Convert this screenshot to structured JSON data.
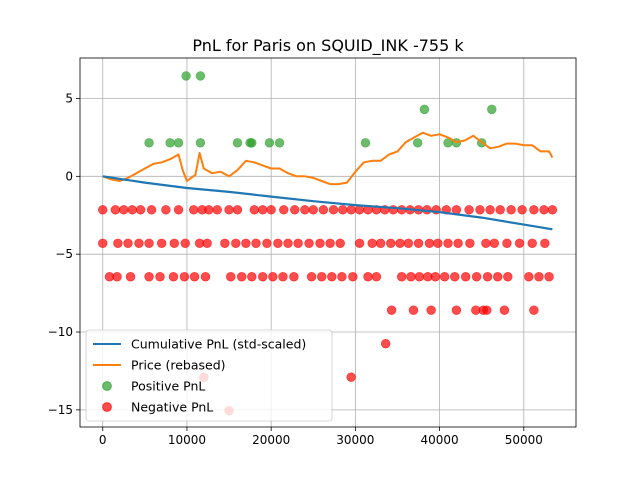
{
  "chart_data": {
    "type": "scatter",
    "title": "PnL for Paris on SQUID_INK -755 k",
    "xlabel": "",
    "ylabel": "",
    "xlim": [
      -2700,
      56200
    ],
    "ylim": [
      -16.1,
      7.6
    ],
    "x_ticks": [
      0,
      10000,
      20000,
      30000,
      40000,
      50000
    ],
    "y_ticks": [
      5,
      0,
      -5,
      -10,
      -15
    ],
    "grid": true,
    "legend_position": "lower-left",
    "legend": [
      {
        "label": "Cumulative PnL (std-scaled)",
        "kind": "line",
        "color": "#1f77b4"
      },
      {
        "label": "Price (rebased)",
        "kind": "line",
        "color": "#ff7f0e"
      },
      {
        "label": "Positive PnL",
        "kind": "marker",
        "color": "#2ca02c"
      },
      {
        "label": "Negative PnL",
        "kind": "marker",
        "color": "#ff0000"
      }
    ],
    "series": [
      {
        "name": "Cumulative PnL (std-scaled)",
        "type": "line",
        "color": "#1f77b4",
        "points": [
          [
            0,
            0
          ],
          [
            5000,
            -0.4
          ],
          [
            10000,
            -0.75
          ],
          [
            15000,
            -1.0
          ],
          [
            20000,
            -1.3
          ],
          [
            25000,
            -1.6
          ],
          [
            30000,
            -1.85
          ],
          [
            35000,
            -2.05
          ],
          [
            40000,
            -2.3
          ],
          [
            45000,
            -2.65
          ],
          [
            50000,
            -3.1
          ],
          [
            53400,
            -3.4
          ]
        ]
      },
      {
        "name": "Price (rebased)",
        "type": "line",
        "color": "#ff7f0e",
        "points": [
          [
            0,
            0
          ],
          [
            1000,
            -0.2
          ],
          [
            2000,
            -0.3
          ],
          [
            3000,
            -0.1
          ],
          [
            4000,
            0.2
          ],
          [
            5000,
            0.5
          ],
          [
            6000,
            0.8
          ],
          [
            7000,
            0.9
          ],
          [
            8000,
            1.1
          ],
          [
            9000,
            1.4
          ],
          [
            9500,
            0.4
          ],
          [
            10000,
            -0.3
          ],
          [
            11000,
            0.1
          ],
          [
            11500,
            1.5
          ],
          [
            12000,
            0.5
          ],
          [
            13000,
            0.2
          ],
          [
            14000,
            0.3
          ],
          [
            15000,
            0.0
          ],
          [
            16000,
            0.4
          ],
          [
            17000,
            1.0
          ],
          [
            18000,
            0.9
          ],
          [
            19000,
            0.7
          ],
          [
            20000,
            0.5
          ],
          [
            21000,
            0.5
          ],
          [
            22000,
            0.2
          ],
          [
            23000,
            0.0
          ],
          [
            24000,
            0.0
          ],
          [
            25000,
            -0.1
          ],
          [
            26000,
            -0.3
          ],
          [
            27000,
            -0.5
          ],
          [
            28000,
            -0.5
          ],
          [
            29000,
            -0.4
          ],
          [
            30000,
            0.3
          ],
          [
            31000,
            0.9
          ],
          [
            32000,
            1.0
          ],
          [
            33000,
            1.0
          ],
          [
            34000,
            1.4
          ],
          [
            35000,
            1.6
          ],
          [
            36000,
            2.2
          ],
          [
            37000,
            2.5
          ],
          [
            38000,
            2.8
          ],
          [
            39000,
            2.6
          ],
          [
            40000,
            2.7
          ],
          [
            41000,
            2.5
          ],
          [
            42000,
            2.2
          ],
          [
            43000,
            2.3
          ],
          [
            44000,
            2.6
          ],
          [
            45000,
            2.2
          ],
          [
            46000,
            1.8
          ],
          [
            47000,
            1.9
          ],
          [
            48000,
            2.1
          ],
          [
            49000,
            2.1
          ],
          [
            50000,
            2.0
          ],
          [
            51000,
            2.0
          ],
          [
            52000,
            1.6
          ],
          [
            53000,
            1.6
          ],
          [
            53400,
            1.2
          ]
        ]
      },
      {
        "name": "Positive PnL",
        "type": "scatter",
        "color": "#2ca02c",
        "points": [
          [
            5500,
            2.15
          ],
          [
            8000,
            2.15
          ],
          [
            9000,
            2.15
          ],
          [
            9900,
            6.45
          ],
          [
            11600,
            6.45
          ],
          [
            11600,
            2.15
          ],
          [
            16000,
            2.15
          ],
          [
            17500,
            2.15
          ],
          [
            17700,
            2.15
          ],
          [
            19800,
            2.15
          ],
          [
            21000,
            2.15
          ],
          [
            31200,
            2.15
          ],
          [
            37400,
            2.15
          ],
          [
            38200,
            4.3
          ],
          [
            41000,
            2.15
          ],
          [
            42000,
            2.15
          ],
          [
            45000,
            2.15
          ],
          [
            46200,
            4.3
          ]
        ]
      },
      {
        "name": "Negative PnL",
        "type": "scatter",
        "color": "#ff0000",
        "points": [
          [
            0,
            -2.15
          ],
          [
            1500,
            -2.15
          ],
          [
            2500,
            -2.15
          ],
          [
            3500,
            -2.15
          ],
          [
            4500,
            -2.15
          ],
          [
            5800,
            -2.15
          ],
          [
            7500,
            -2.15
          ],
          [
            9000,
            -2.15
          ],
          [
            10800,
            -2.15
          ],
          [
            11800,
            -2.15
          ],
          [
            12600,
            -2.15
          ],
          [
            13600,
            -2.15
          ],
          [
            15000,
            -2.15
          ],
          [
            16000,
            -2.15
          ],
          [
            18000,
            -2.15
          ],
          [
            19000,
            -2.15
          ],
          [
            20000,
            -2.15
          ],
          [
            21500,
            -2.15
          ],
          [
            22800,
            -2.15
          ],
          [
            24000,
            -2.15
          ],
          [
            25000,
            -2.15
          ],
          [
            26200,
            -2.15
          ],
          [
            27400,
            -2.15
          ],
          [
            28500,
            -2.15
          ],
          [
            29500,
            -2.15
          ],
          [
            30500,
            -2.15
          ],
          [
            31500,
            -2.15
          ],
          [
            32500,
            -2.15
          ],
          [
            33500,
            -2.15
          ],
          [
            34500,
            -2.15
          ],
          [
            35500,
            -2.15
          ],
          [
            36500,
            -2.15
          ],
          [
            37500,
            -2.15
          ],
          [
            38500,
            -2.15
          ],
          [
            39600,
            -2.15
          ],
          [
            40800,
            -2.15
          ],
          [
            42000,
            -2.15
          ],
          [
            43500,
            -2.15
          ],
          [
            44800,
            -2.15
          ],
          [
            46000,
            -2.15
          ],
          [
            47200,
            -2.15
          ],
          [
            48500,
            -2.15
          ],
          [
            49800,
            -2.15
          ],
          [
            51200,
            -2.15
          ],
          [
            52400,
            -2.15
          ],
          [
            53400,
            -2.15
          ],
          [
            0,
            -4.3
          ],
          [
            1800,
            -4.3
          ],
          [
            3000,
            -4.3
          ],
          [
            4300,
            -4.3
          ],
          [
            5500,
            -4.3
          ],
          [
            7000,
            -4.3
          ],
          [
            8500,
            -4.3
          ],
          [
            9800,
            -4.3
          ],
          [
            11500,
            -4.3
          ],
          [
            12400,
            -4.3
          ],
          [
            14500,
            -4.3
          ],
          [
            15800,
            -4.3
          ],
          [
            17000,
            -4.3
          ],
          [
            18200,
            -4.3
          ],
          [
            19500,
            -4.3
          ],
          [
            20800,
            -4.3
          ],
          [
            22000,
            -4.3
          ],
          [
            23200,
            -4.3
          ],
          [
            24500,
            -4.3
          ],
          [
            25800,
            -4.3
          ],
          [
            27000,
            -4.3
          ],
          [
            28200,
            -4.3
          ],
          [
            30500,
            -4.3
          ],
          [
            32000,
            -4.3
          ],
          [
            33000,
            -4.3
          ],
          [
            34200,
            -4.3
          ],
          [
            35300,
            -4.3
          ],
          [
            36300,
            -4.3
          ],
          [
            37500,
            -4.3
          ],
          [
            38800,
            -4.3
          ],
          [
            39800,
            -4.3
          ],
          [
            41000,
            -4.3
          ],
          [
            42200,
            -4.3
          ],
          [
            43600,
            -4.3
          ],
          [
            45500,
            -4.3
          ],
          [
            46500,
            -4.3
          ],
          [
            48000,
            -4.3
          ],
          [
            49500,
            -4.3
          ],
          [
            51000,
            -4.3
          ],
          [
            52500,
            -4.3
          ],
          [
            800,
            -6.45
          ],
          [
            1700,
            -6.45
          ],
          [
            3300,
            -6.45
          ],
          [
            5500,
            -6.45
          ],
          [
            6800,
            -6.45
          ],
          [
            8400,
            -6.45
          ],
          [
            9700,
            -6.45
          ],
          [
            10900,
            -6.45
          ],
          [
            12200,
            -6.45
          ],
          [
            15200,
            -6.45
          ],
          [
            16500,
            -6.45
          ],
          [
            17700,
            -6.45
          ],
          [
            19000,
            -6.45
          ],
          [
            20200,
            -6.45
          ],
          [
            21400,
            -6.45
          ],
          [
            22700,
            -6.45
          ],
          [
            24800,
            -6.45
          ],
          [
            26000,
            -6.45
          ],
          [
            27200,
            -6.45
          ],
          [
            28400,
            -6.45
          ],
          [
            29700,
            -6.45
          ],
          [
            31500,
            -6.45
          ],
          [
            32500,
            -6.45
          ],
          [
            35500,
            -6.45
          ],
          [
            36600,
            -6.45
          ],
          [
            37600,
            -6.45
          ],
          [
            38600,
            -6.45
          ],
          [
            39500,
            -6.45
          ],
          [
            40600,
            -6.45
          ],
          [
            41800,
            -6.45
          ],
          [
            43100,
            -6.45
          ],
          [
            44400,
            -6.45
          ],
          [
            45700,
            -6.45
          ],
          [
            46900,
            -6.45
          ],
          [
            48100,
            -6.45
          ],
          [
            50600,
            -6.45
          ],
          [
            51800,
            -6.45
          ],
          [
            53000,
            -6.45
          ],
          [
            34300,
            -8.6
          ],
          [
            36900,
            -8.6
          ],
          [
            39000,
            -8.6
          ],
          [
            42000,
            -8.6
          ],
          [
            44300,
            -8.6
          ],
          [
            45200,
            -8.6
          ],
          [
            45600,
            -8.6
          ],
          [
            47700,
            -8.6
          ],
          [
            51200,
            -8.6
          ],
          [
            33600,
            -10.75
          ],
          [
            12000,
            -12.9
          ],
          [
            29500,
            -12.9
          ],
          [
            15000,
            -15.05
          ]
        ]
      }
    ]
  }
}
